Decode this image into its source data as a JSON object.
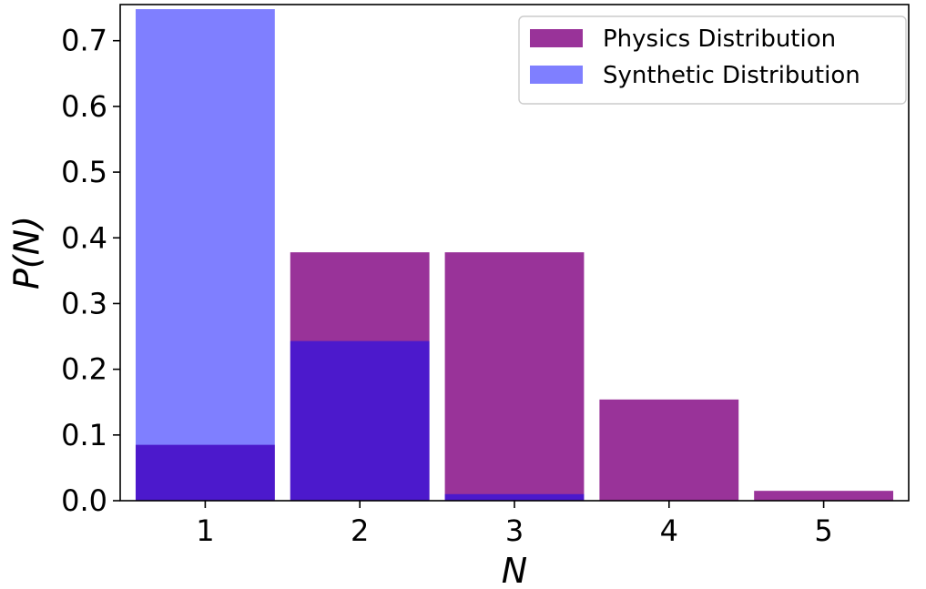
{
  "chart_data": {
    "type": "bar",
    "categories": [
      "1",
      "2",
      "3",
      "4",
      "5"
    ],
    "xlabel": "N",
    "ylabel": "P(N)",
    "ylim": [
      0,
      0.755
    ],
    "yticks": [
      "0.0",
      "0.1",
      "0.2",
      "0.3",
      "0.4",
      "0.5",
      "0.6",
      "0.7"
    ],
    "grid": false,
    "legend_position": "top-right",
    "overlay": true,
    "series": [
      {
        "name": "Physics Distribution",
        "color": "#800080",
        "opacity": 0.8,
        "values": [
          0.085,
          0.378,
          0.378,
          0.154,
          0.015
        ]
      },
      {
        "name": "Synthetic Distribution",
        "color": "#0000ff",
        "opacity": 0.5,
        "values": [
          0.748,
          0.243,
          0.01,
          0.0,
          0.0
        ]
      }
    ]
  }
}
